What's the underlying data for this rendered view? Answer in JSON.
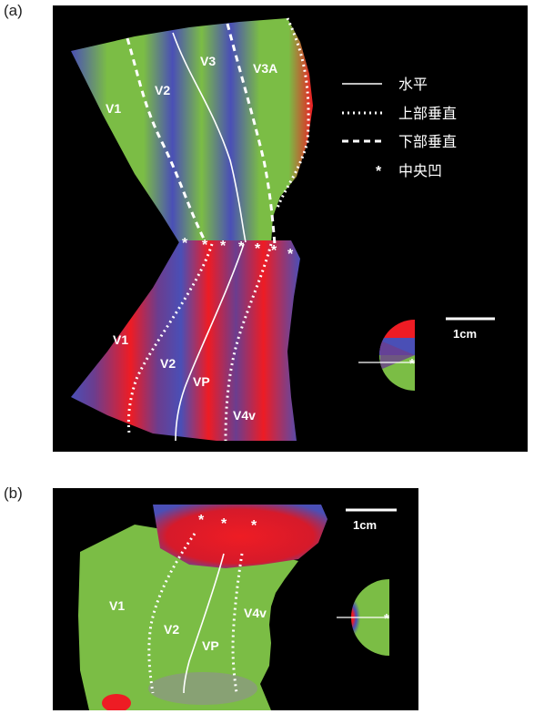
{
  "panel_a": {
    "label": "(a)",
    "areas_upper": [
      "V1",
      "V2",
      "V3",
      "V3A"
    ],
    "areas_lower": [
      "V1",
      "V2",
      "VP",
      "V4v"
    ],
    "legend": [
      {
        "style": "solid",
        "text": "水平"
      },
      {
        "style": "dotted",
        "text": "上部垂直"
      },
      {
        "style": "dashed",
        "text": "下部垂直"
      },
      {
        "style": "asterisk",
        "symbol": "*",
        "text": "中央凹"
      }
    ],
    "scale_bar": "1cm",
    "fovea_marker": "*"
  },
  "panel_b": {
    "label": "(b)",
    "areas": [
      "V1",
      "V2",
      "VP",
      "V4v"
    ],
    "scale_bar": "1cm",
    "fovea_marker": "*"
  },
  "colors": {
    "background": "#000000",
    "red": "#ee1c24",
    "green": "#7bbd45",
    "blue": "#4a4fb6",
    "line": "#ffffff"
  }
}
